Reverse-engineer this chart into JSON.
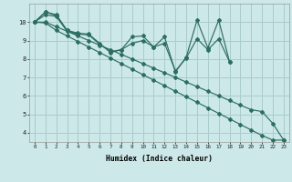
{
  "xlabel": "Humidex (Indice chaleur)",
  "background_color": "#cce8e8",
  "grid_color": "#aacccc",
  "line_color": "#2d6e62",
  "xlim": [
    -0.5,
    23.5
  ],
  "ylim": [
    3.5,
    11.0
  ],
  "xticks": [
    0,
    1,
    2,
    3,
    4,
    5,
    6,
    7,
    8,
    9,
    10,
    11,
    12,
    13,
    14,
    15,
    16,
    17,
    18,
    19,
    20,
    21,
    22,
    23
  ],
  "yticks": [
    4,
    5,
    6,
    7,
    8,
    9,
    10
  ],
  "lines": [
    {
      "x": [
        0,
        1,
        2,
        3,
        4,
        5,
        6,
        7,
        8,
        9,
        10,
        11,
        12,
        13,
        14,
        15,
        16,
        17,
        18
      ],
      "y": [
        10.0,
        10.55,
        10.4,
        9.55,
        9.4,
        9.35,
        8.85,
        8.35,
        8.5,
        9.2,
        9.25,
        8.65,
        9.2,
        7.3,
        8.1,
        10.1,
        8.6,
        10.1,
        7.85
      ]
    },
    {
      "x": [
        0,
        1,
        2,
        3,
        4,
        5,
        6,
        7,
        8,
        9,
        10,
        11,
        12,
        13,
        14,
        15,
        16,
        17,
        18
      ],
      "y": [
        10.0,
        10.55,
        10.35,
        9.55,
        9.35,
        9.3,
        8.8,
        8.4,
        8.5,
        8.85,
        9.0,
        8.65,
        8.85,
        7.35,
        8.05,
        9.1,
        8.5,
        9.1,
        7.85
      ]
    },
    {
      "x": [
        0,
        1,
        2,
        3,
        4
      ],
      "y": [
        10.0,
        10.4,
        10.3,
        9.5,
        9.3
      ]
    },
    {
      "x": [
        0,
        1,
        2,
        3,
        4,
        5,
        6,
        7,
        8,
        9,
        10,
        11,
        12,
        13,
        14,
        15,
        16,
        17,
        18,
        19,
        20,
        21,
        22,
        23
      ],
      "y": [
        10.0,
        10.0,
        9.75,
        9.5,
        9.25,
        9.0,
        8.75,
        8.5,
        8.25,
        8.0,
        7.75,
        7.5,
        7.25,
        7.0,
        6.75,
        6.5,
        6.25,
        6.0,
        5.75,
        5.5,
        5.25,
        5.15,
        4.5,
        3.6
      ]
    },
    {
      "x": [
        0,
        1,
        2,
        3,
        4,
        5,
        6,
        7,
        8,
        9,
        10,
        11,
        12,
        13,
        14,
        15,
        16,
        17,
        18,
        19,
        20,
        21,
        22,
        23
      ],
      "y": [
        10.0,
        9.95,
        9.55,
        9.25,
        8.95,
        8.65,
        8.35,
        8.05,
        7.75,
        7.45,
        7.15,
        6.85,
        6.55,
        6.25,
        5.95,
        5.65,
        5.35,
        5.05,
        4.75,
        4.45,
        4.15,
        3.85,
        3.6,
        3.6
      ]
    }
  ]
}
